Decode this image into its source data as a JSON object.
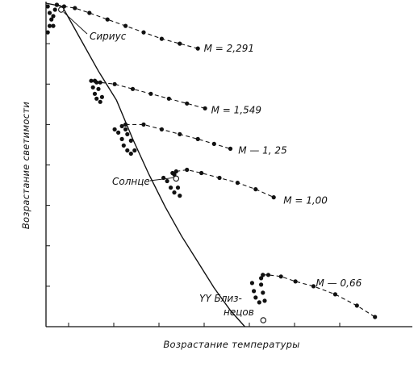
{
  "chart_data": {
    "type": "scatter",
    "xlabel": "Возрастание температуры",
    "ylabel": "Возрастание светимости",
    "xlim": [
      0,
      100
    ],
    "ylim": [
      0,
      100
    ],
    "grid": false,
    "legend": "none",
    "main_sequence": [
      [
        0,
        100
      ],
      [
        4.5,
        99
      ],
      [
        9.5,
        89
      ],
      [
        14.5,
        79
      ],
      [
        19.5,
        70
      ],
      [
        24,
        58
      ],
      [
        28.5,
        47
      ],
      [
        33,
        37
      ],
      [
        37.5,
        28
      ],
      [
        42,
        20
      ],
      [
        46.5,
        12
      ],
      [
        51,
        5
      ],
      [
        55,
        0
      ]
    ],
    "series": [
      {
        "label": "M = 2,291",
        "loop": [
          [
            0.5,
            99
          ],
          [
            1,
            97
          ],
          [
            1.5,
            95
          ],
          [
            1,
            93
          ],
          [
            0.5,
            91
          ],
          [
            2,
            93
          ],
          [
            2,
            96
          ],
          [
            2.5,
            98
          ],
          [
            3,
            99.5
          ]
        ],
        "branch": [
          [
            3,
            99.5
          ],
          [
            5,
            99
          ],
          [
            8,
            98.5
          ],
          [
            12,
            97
          ],
          [
            17,
            95
          ],
          [
            22,
            93
          ],
          [
            27,
            91
          ],
          [
            32,
            89
          ],
          [
            37,
            87.5
          ],
          [
            42,
            86
          ]
        ],
        "label_at": [
          43,
          86
        ]
      },
      {
        "label": "M = 1,549",
        "loop": [
          [
            12.5,
            76
          ],
          [
            13,
            74
          ],
          [
            13.5,
            72
          ],
          [
            14,
            70.5
          ],
          [
            15,
            69.5
          ],
          [
            15.5,
            71
          ],
          [
            14.5,
            73.5
          ],
          [
            14,
            75.5
          ],
          [
            13.5,
            76
          ]
        ],
        "branch": [
          [
            13.5,
            76
          ],
          [
            15,
            75.5
          ],
          [
            19,
            75
          ],
          [
            24,
            73.5
          ],
          [
            29,
            72
          ],
          [
            34,
            70.5
          ],
          [
            39,
            69
          ],
          [
            44,
            67.5
          ]
        ],
        "label_at": [
          45,
          67
        ]
      },
      {
        "label": "M — 1, 25",
        "loop": [
          [
            19,
            61
          ],
          [
            20,
            60
          ],
          [
            21,
            58
          ],
          [
            21.5,
            56
          ],
          [
            22.5,
            54.5
          ],
          [
            23.5,
            53.5
          ],
          [
            24.5,
            54.5
          ],
          [
            23.5,
            57.5
          ],
          [
            22.5,
            59.5
          ],
          [
            22,
            61
          ],
          [
            21,
            62
          ]
        ],
        "branch": [
          [
            22,
            62.5
          ],
          [
            27,
            62.5
          ],
          [
            32,
            61
          ],
          [
            37,
            59.5
          ],
          [
            42,
            58
          ],
          [
            46.5,
            56.5
          ],
          [
            51,
            55
          ]
        ],
        "label_at": [
          52.5,
          54.5
        ]
      },
      {
        "label": "M = 1,00",
        "loop": [
          [
            32.5,
            46
          ],
          [
            33.5,
            45
          ],
          [
            34.5,
            43
          ],
          [
            35.5,
            41.5
          ],
          [
            37,
            40.5
          ],
          [
            36.5,
            43
          ],
          [
            36,
            45.5
          ],
          [
            35.5,
            47
          ],
          [
            35,
            47.5
          ]
        ],
        "branch": [
          [
            36,
            48
          ],
          [
            39,
            48.5
          ],
          [
            43,
            47.5
          ],
          [
            48,
            46
          ],
          [
            53,
            44.5
          ],
          [
            58,
            42.5
          ],
          [
            63,
            40
          ]
        ],
        "label_at": [
          65,
          39
        ]
      },
      {
        "label": "M — 0,66",
        "loop": [
          [
            57,
            13.5
          ],
          [
            57.5,
            11
          ],
          [
            58,
            9
          ],
          [
            59,
            7.5
          ],
          [
            60.5,
            8
          ],
          [
            60,
            10.5
          ],
          [
            59.5,
            13
          ],
          [
            59.5,
            15
          ],
          [
            60,
            16
          ]
        ],
        "branch": [
          [
            60,
            16
          ],
          [
            61.5,
            16
          ],
          [
            65,
            15.5
          ],
          [
            69,
            14
          ],
          [
            74,
            12.5
          ],
          [
            80,
            10
          ],
          [
            86,
            6.5
          ],
          [
            91,
            3
          ]
        ],
        "label_at": [
          74,
          13.5
        ]
      }
    ],
    "annotations": [
      {
        "text": "Сириус",
        "point": [
          4.2,
          98
        ]
      },
      {
        "text": "Солнце",
        "point": [
          36,
          45.8
        ]
      },
      {
        "text": "YY Близ-",
        "point": [
          61,
          1.5
        ]
      },
      {
        "text": "нецов",
        "point": [
          61,
          1.5
        ]
      }
    ]
  }
}
